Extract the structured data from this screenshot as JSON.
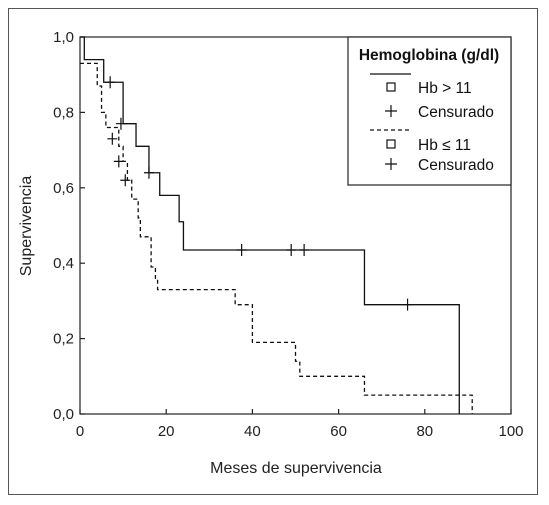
{
  "chart_data": {
    "type": "line",
    "xlabel": "Meses de supervivencia",
    "ylabel": "Supervivencia",
    "xlim": [
      0,
      100
    ],
    "ylim": [
      0,
      1
    ],
    "x_ticks": [
      0,
      20,
      40,
      60,
      80,
      100
    ],
    "y_ticks": [
      "0,0",
      "0,2",
      "0,4",
      "0,6",
      "0,8",
      "1,0"
    ],
    "y_tick_values": [
      0,
      0.2,
      0.4,
      0.6,
      0.8,
      1.0
    ],
    "grid": false,
    "legend": {
      "position": "top-right",
      "title": "Hemoglobina (g/dl)",
      "entries": [
        {
          "series": "Hb > 11",
          "marker_label": "Hb > 11",
          "censor_label": "Censurado",
          "line_style": "solid"
        },
        {
          "series": "Hb ≤ 11",
          "marker_label": "Hb ≤ 11",
          "censor_label": "Censurado",
          "line_style": "dashed"
        }
      ]
    },
    "series": [
      {
        "name": "Hb > 11",
        "line_style": "solid",
        "steps": [
          [
            0,
            1.0
          ],
          [
            1,
            0.94
          ],
          [
            5.5,
            0.88
          ],
          [
            10,
            0.77
          ],
          [
            13,
            0.71
          ],
          [
            16,
            0.64
          ],
          [
            18.5,
            0.58
          ],
          [
            23,
            0.51
          ],
          [
            24,
            0.435
          ],
          [
            66,
            0.29
          ],
          [
            88,
            0.0
          ]
        ],
        "end_x": 88,
        "censored": [
          [
            7,
            0.88
          ],
          [
            9.5,
            0.77
          ],
          [
            16,
            0.64
          ],
          [
            37.5,
            0.435
          ],
          [
            49,
            0.435
          ],
          [
            52,
            0.435
          ],
          [
            76,
            0.29
          ]
        ]
      },
      {
        "name": "Hb ≤ 11",
        "line_style": "dashed",
        "steps": [
          [
            0,
            0.93
          ],
          [
            4,
            0.87
          ],
          [
            5,
            0.8
          ],
          [
            6,
            0.76
          ],
          [
            9,
            0.71
          ],
          [
            10,
            0.67
          ],
          [
            11,
            0.62
          ],
          [
            12,
            0.57
          ],
          [
            13.5,
            0.52
          ],
          [
            14,
            0.47
          ],
          [
            16.5,
            0.39
          ],
          [
            17.5,
            0.36
          ],
          [
            18,
            0.33
          ],
          [
            36,
            0.29
          ],
          [
            40,
            0.19
          ],
          [
            50,
            0.14
          ],
          [
            51,
            0.1
          ],
          [
            66,
            0.05
          ],
          [
            91,
            0.0
          ]
        ],
        "end_x": 91,
        "censored": [
          [
            7.5,
            0.73
          ],
          [
            9,
            0.67
          ],
          [
            10.5,
            0.62
          ]
        ]
      }
    ]
  }
}
